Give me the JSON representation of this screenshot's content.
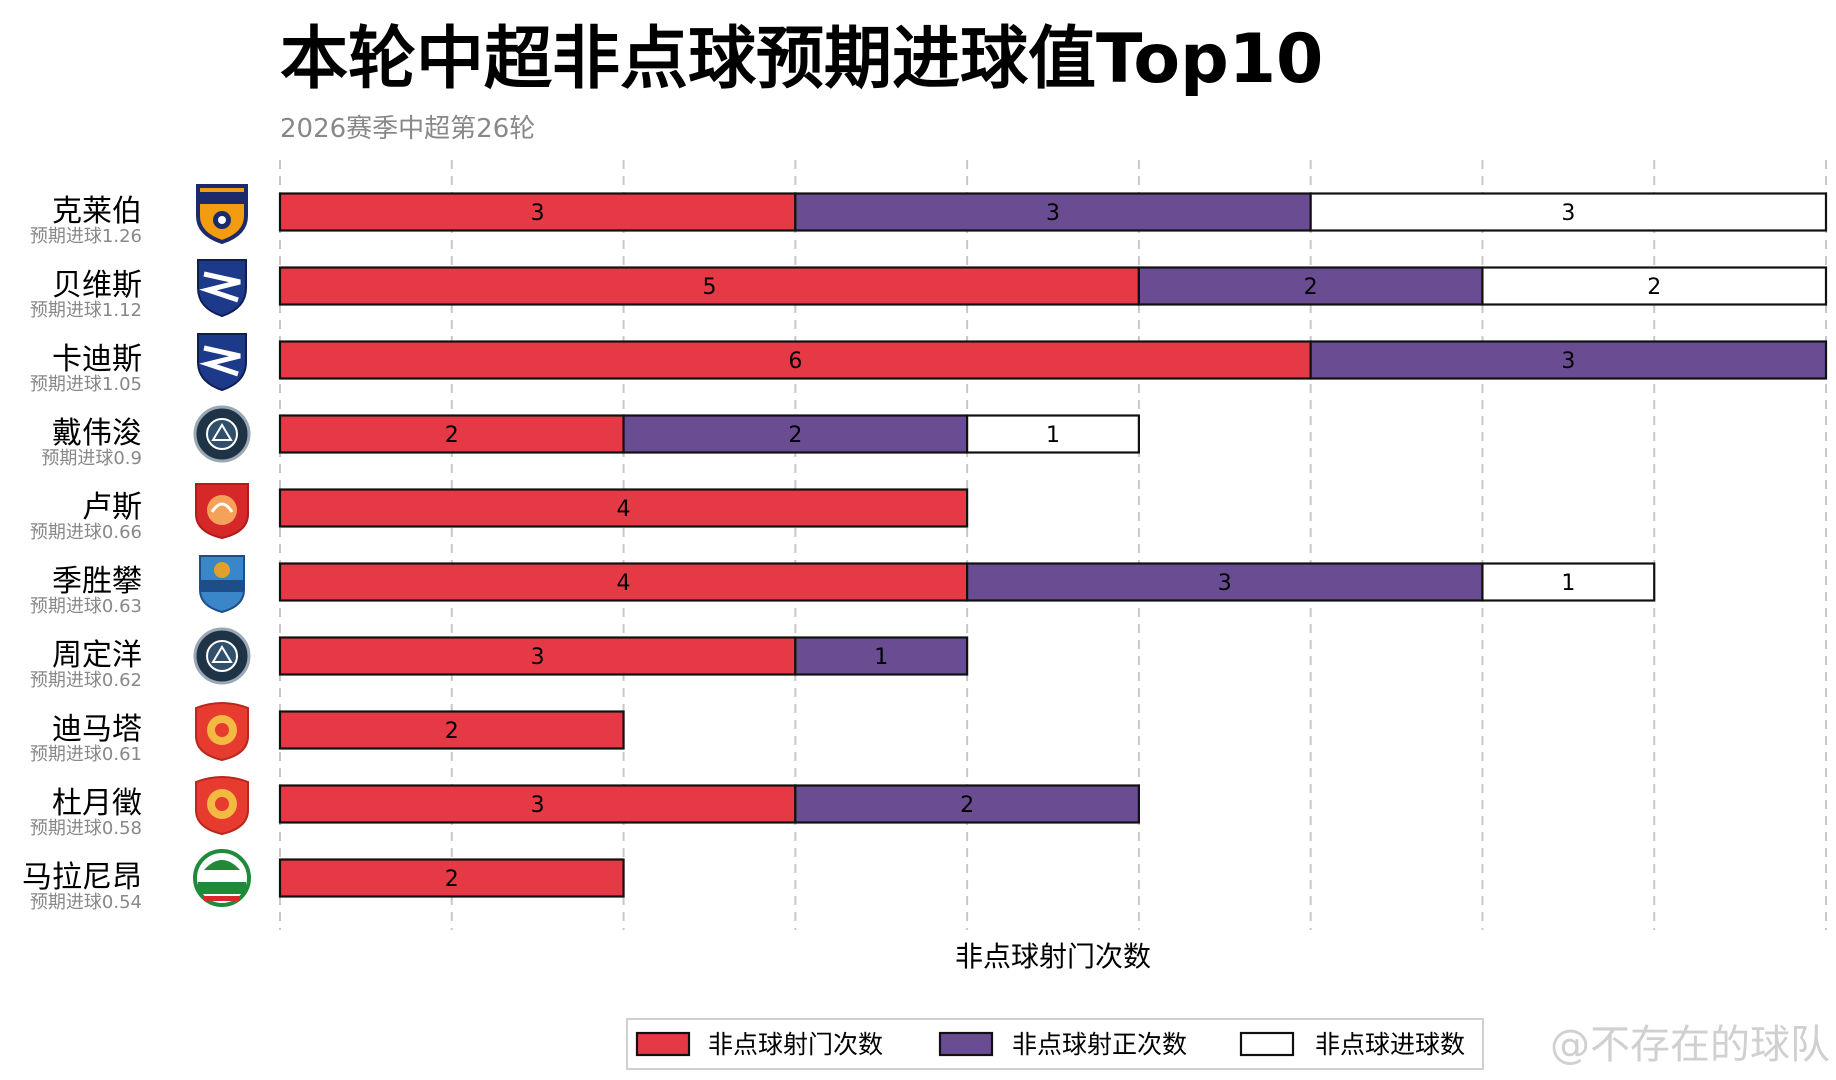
{
  "chart_data": {
    "type": "bar",
    "orientation": "horizontal",
    "stacked": true,
    "title": "本轮中超非点球预期进球值Top10",
    "subtitle": "2026赛季中超第26轮",
    "xlabel": "非点球射门次数",
    "xlim": [
      0,
      9
    ],
    "grid": true,
    "legend_position": "bottom",
    "players": [
      {
        "name": "克莱伯",
        "xg_text": "预期进球1.26",
        "logo": "yunnan-yukun-logo"
      },
      {
        "name": "贝维斯",
        "xg_text": "预期进球1.12",
        "logo": "dalian-yingbo-logo"
      },
      {
        "name": "卡迪斯",
        "xg_text": "预期进球1.05",
        "logo": "dalian-yingbo-logo"
      },
      {
        "name": "戴伟浚",
        "xg_text": "预期进球0.9",
        "logo": "shenzhen-xinpengcheng-logo"
      },
      {
        "name": "卢斯",
        "xg_text": "预期进球0.66",
        "logo": "meizhou-hakka-logo"
      },
      {
        "name": "季胜攀",
        "xg_text": "预期进球0.63",
        "logo": "qingdao-west-coast-logo"
      },
      {
        "name": "周定洋",
        "xg_text": "预期进球0.62",
        "logo": "shenzhen-xinpengcheng-logo"
      },
      {
        "name": "迪马塔",
        "xg_text": "预期进球0.61",
        "logo": "chengdu-rongcheng-logo"
      },
      {
        "name": "杜月徵",
        "xg_text": "预期进球0.58",
        "logo": "chengdu-rongcheng-logo"
      },
      {
        "name": "马拉尼昂",
        "xg_text": "预期进球0.54",
        "logo": "henan-fc-logo"
      }
    ],
    "series": [
      {
        "name": "非点球射门次数",
        "color": "#e63946",
        "values": [
          3,
          5,
          6,
          2,
          4,
          4,
          3,
          2,
          3,
          2
        ]
      },
      {
        "name": "非点球射正次数",
        "color": "#6a4c93",
        "values": [
          3,
          2,
          3,
          2,
          0,
          3,
          1,
          0,
          2,
          0
        ]
      },
      {
        "name": "非点球进球数",
        "color": "#ffffff",
        "values": [
          3,
          2,
          0,
          1,
          0,
          1,
          0,
          0,
          0,
          0
        ]
      }
    ]
  },
  "watermark": "@不存在的球队"
}
